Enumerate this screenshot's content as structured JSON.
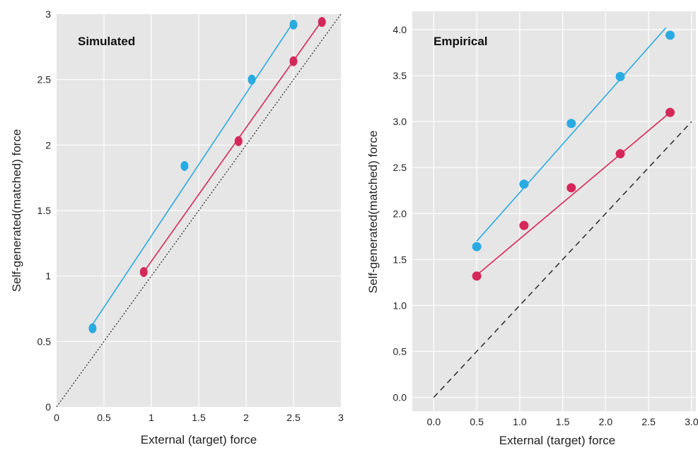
{
  "chart_data": [
    {
      "type": "scatter",
      "title": "Simulated",
      "xlabel": "External (target)  force",
      "ylabel": "Self-generated(matched)  force",
      "xlim": [
        0,
        3
      ],
      "ylim": [
        0,
        3
      ],
      "xticks": [
        "0",
        "0.5",
        "1",
        "1.5",
        "2",
        "2.5",
        "3"
      ],
      "yticks": [
        "0",
        "0.5",
        "1",
        "1.5",
        "2",
        "2.5",
        "3"
      ],
      "grid": true,
      "background": "#e6e6e6",
      "identity_line": {
        "x": [
          0,
          3
        ],
        "y": [
          0,
          3
        ],
        "style": "dotted",
        "color": "#333333"
      },
      "series": [
        {
          "color": "#29abe2",
          "x": [
            0.38,
            1.35,
            2.06,
            2.5
          ],
          "y": [
            0.6,
            1.84,
            2.5,
            2.92
          ],
          "fit": {
            "x": [
              0.38,
              2.5
            ],
            "y": [
              0.63,
              2.94
            ]
          }
        },
        {
          "color": "#d6275a",
          "x": [
            0.92,
            1.92,
            2.5,
            2.8
          ],
          "y": [
            1.03,
            2.03,
            2.64,
            2.94
          ],
          "fit": {
            "x": [
              0.92,
              2.8
            ],
            "y": [
              1.03,
              2.95
            ]
          }
        }
      ]
    },
    {
      "type": "scatter",
      "title": "Empirical",
      "xlabel": "External (target)  force",
      "ylabel": "Self-generated(matched)  force",
      "xlim": [
        -0.25,
        3.05
      ],
      "ylim": [
        -0.15,
        4.2
      ],
      "xticks": [
        "0.0",
        "0.5",
        "1.0",
        "1.5",
        "2.0",
        "2.5",
        "3.0"
      ],
      "yticks": [
        "0.0",
        "0.5",
        "1.0",
        "1.5",
        "2.0",
        "2.5",
        "3.0",
        "3.5",
        "4.0"
      ],
      "grid": true,
      "background": "#e6e6e6",
      "identity_line": {
        "x": [
          0,
          3
        ],
        "y": [
          0,
          3
        ],
        "style": "dashed",
        "color": "#333333"
      },
      "series": [
        {
          "color": "#29abe2",
          "x": [
            0.5,
            1.05,
            1.6,
            2.17,
            2.75
          ],
          "y": [
            1.64,
            2.32,
            2.98,
            3.49,
            3.94
          ],
          "fit": {
            "x": [
              0.5,
              2.7
            ],
            "y": [
              1.7,
              4.02
            ]
          }
        },
        {
          "color": "#d6275a",
          "x": [
            0.5,
            1.05,
            1.6,
            2.17,
            2.75
          ],
          "y": [
            1.32,
            1.87,
            2.28,
            2.65,
            3.1
          ],
          "fit": {
            "x": [
              0.5,
              2.75
            ],
            "y": [
              1.33,
              3.1
            ]
          }
        }
      ]
    }
  ]
}
